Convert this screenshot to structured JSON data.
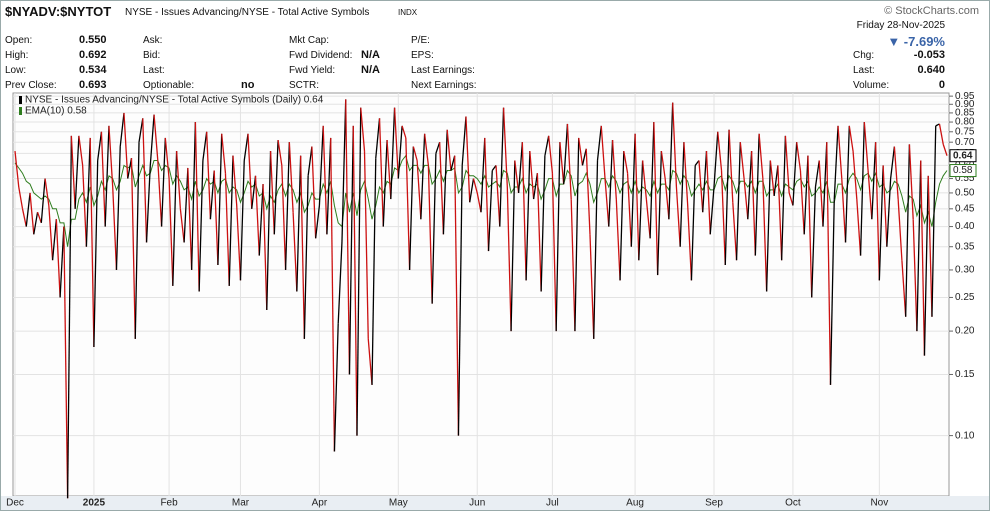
{
  "header": {
    "symbol": "$NYADV:$NYTOT",
    "description": "NYSE - Issues Advancing/NYSE - Total Active Symbols",
    "exchange": "INDX",
    "date": "Friday  28-Nov-2025",
    "change_pct": "-7.69%",
    "brand": "© StockCharts.com",
    "fields": [
      [
        "Open:",
        "0.550"
      ],
      [
        "High:",
        "0.692"
      ],
      [
        "Low:",
        "0.534"
      ],
      [
        "Prev Close:",
        "0.693"
      ],
      [
        "Ask:",
        ""
      ],
      [
        "Bid:",
        ""
      ],
      [
        "Last:",
        ""
      ],
      [
        "Optionable:",
        "no"
      ],
      [
        "Mkt Cap:",
        ""
      ],
      [
        "Fwd Dividend:",
        "N/A"
      ],
      [
        "Fwd Yield:",
        "N/A"
      ],
      [
        "SCTR:",
        ""
      ],
      [
        "P/E:",
        ""
      ],
      [
        "EPS:",
        ""
      ],
      [
        "Last Earnings:",
        ""
      ],
      [
        "Next Earnings:",
        ""
      ],
      [
        "Chg:",
        "-0.053"
      ],
      [
        "Last:",
        "0.640"
      ],
      [
        "Volume:",
        "0"
      ]
    ]
  },
  "chart_data": {
    "type": "line",
    "log_scale": true,
    "grid": true,
    "legend": "top-left",
    "down_color": "#cc1111",
    "ylim": [
      0.067,
      0.97
    ],
    "yticks": [
      {
        "value": 0.1,
        "label": "0.10"
      },
      0.15,
      {
        "value": 0.2,
        "label": "0.20"
      },
      0.25,
      {
        "value": 0.3,
        "label": "0.30"
      },
      0.35,
      {
        "value": 0.4,
        "label": "0.40"
      },
      0.45,
      {
        "value": 0.5,
        "label": "0.50"
      },
      0.55,
      {
        "value": 0.6,
        "label": "0.60"
      },
      0.65,
      {
        "value": 0.7,
        "label": "0.70"
      },
      0.75,
      {
        "value": 0.8,
        "label": "0.80"
      },
      0.85,
      {
        "value": 0.9,
        "label": "0.90"
      },
      0.95
    ],
    "categories": [
      "Dec",
      null,
      null,
      null,
      null,
      null,
      null,
      null,
      null,
      null,
      null,
      null,
      null,
      null,
      null,
      null,
      null,
      null,
      null,
      null,
      null,
      "2025",
      null,
      null,
      null,
      null,
      null,
      null,
      null,
      null,
      null,
      null,
      null,
      null,
      null,
      null,
      null,
      null,
      null,
      null,
      null,
      "Feb",
      null,
      null,
      null,
      null,
      null,
      null,
      null,
      null,
      null,
      null,
      null,
      null,
      null,
      null,
      null,
      null,
      null,
      null,
      "Mar",
      null,
      null,
      null,
      null,
      null,
      null,
      null,
      null,
      null,
      null,
      null,
      null,
      null,
      null,
      null,
      null,
      null,
      null,
      null,
      null,
      "Apr",
      null,
      null,
      null,
      null,
      null,
      null,
      null,
      null,
      null,
      null,
      null,
      null,
      null,
      null,
      null,
      null,
      null,
      null,
      null,
      null,
      "May",
      null,
      null,
      null,
      null,
      null,
      null,
      null,
      null,
      null,
      null,
      null,
      null,
      null,
      null,
      null,
      null,
      null,
      null,
      null,
      null,
      "Jun",
      null,
      null,
      null,
      null,
      null,
      null,
      null,
      null,
      null,
      null,
      null,
      null,
      null,
      null,
      null,
      null,
      null,
      null,
      null,
      "Jul",
      null,
      null,
      null,
      null,
      null,
      null,
      null,
      null,
      null,
      null,
      null,
      null,
      null,
      null,
      null,
      null,
      null,
      null,
      null,
      null,
      null,
      "Aug",
      null,
      null,
      null,
      null,
      null,
      null,
      null,
      null,
      null,
      null,
      null,
      null,
      null,
      null,
      null,
      null,
      null,
      null,
      null,
      null,
      "Sep",
      null,
      null,
      null,
      null,
      null,
      null,
      null,
      null,
      null,
      null,
      null,
      null,
      null,
      null,
      null,
      null,
      null,
      null,
      null,
      null,
      "Oct",
      null,
      null,
      null,
      null,
      null,
      null,
      null,
      null,
      null,
      null,
      null,
      null,
      null,
      null,
      null,
      null,
      null,
      null,
      null,
      null,
      null,
      null,
      "Nov",
      null,
      null,
      null,
      null,
      null,
      null,
      null,
      null,
      null,
      null,
      null,
      null,
      null,
      null,
      null,
      null,
      null,
      null
    ],
    "series": [
      {
        "name": "NYSE - Issues Advancing/NYSE - Total Active Symbols (Daily) 0.64",
        "color": "#000000",
        "values": [
          0.66,
          0.52,
          0.45,
          0.4,
          0.5,
          0.38,
          0.44,
          0.41,
          0.55,
          0.46,
          0.32,
          0.42,
          0.25,
          0.4,
          0.066,
          0.73,
          0.45,
          0.73,
          0.6,
          0.35,
          0.72,
          0.18,
          0.62,
          0.75,
          0.4,
          0.78,
          0.52,
          0.3,
          0.68,
          0.85,
          0.55,
          0.63,
          0.19,
          0.7,
          0.82,
          0.36,
          0.6,
          0.84,
          0.62,
          0.4,
          0.72,
          0.55,
          0.27,
          0.66,
          0.45,
          0.36,
          0.59,
          0.3,
          0.8,
          0.26,
          0.62,
          0.75,
          0.42,
          0.58,
          0.31,
          0.74,
          0.57,
          0.27,
          0.64,
          0.46,
          0.28,
          0.62,
          0.74,
          0.45,
          0.56,
          0.33,
          0.53,
          0.23,
          0.66,
          0.38,
          0.71,
          0.6,
          0.3,
          0.7,
          0.44,
          0.26,
          0.64,
          0.19,
          0.56,
          0.68,
          0.37,
          0.46,
          0.78,
          0.38,
          0.72,
          0.09,
          0.21,
          0.36,
          0.93,
          0.15,
          0.78,
          0.1,
          0.88,
          0.66,
          0.19,
          0.14,
          0.63,
          0.82,
          0.4,
          0.71,
          0.48,
          0.88,
          0.55,
          0.78,
          0.72,
          0.3,
          0.68,
          0.62,
          0.42,
          0.74,
          0.6,
          0.24,
          0.65,
          0.7,
          0.38,
          0.76,
          0.58,
          0.64,
          0.1,
          0.6,
          0.83,
          0.47,
          0.55,
          0.5,
          0.44,
          0.72,
          0.34,
          0.58,
          0.6,
          0.4,
          0.88,
          0.52,
          0.2,
          0.62,
          0.5,
          0.7,
          0.28,
          0.66,
          0.48,
          0.57,
          0.26,
          0.64,
          0.73,
          0.57,
          0.2,
          0.7,
          0.53,
          0.79,
          0.48,
          0.2,
          0.72,
          0.6,
          0.67,
          0.38,
          0.19,
          0.62,
          0.78,
          0.55,
          0.4,
          0.71,
          0.48,
          0.28,
          0.66,
          0.57,
          0.35,
          0.74,
          0.32,
          0.62,
          0.48,
          0.37,
          0.8,
          0.29,
          0.66,
          0.55,
          0.42,
          0.91,
          0.52,
          0.35,
          0.7,
          0.46,
          0.28,
          0.6,
          0.62,
          0.44,
          0.66,
          0.38,
          0.52,
          0.75,
          0.58,
          0.31,
          0.76,
          0.47,
          0.32,
          0.7,
          0.55,
          0.42,
          0.66,
          0.33,
          0.74,
          0.55,
          0.26,
          0.62,
          0.49,
          0.6,
          0.32,
          0.73,
          0.5,
          0.46,
          0.7,
          0.58,
          0.38,
          0.64,
          0.25,
          0.52,
          0.62,
          0.4,
          0.7,
          0.14,
          0.48,
          0.78,
          0.55,
          0.36,
          0.78,
          0.66,
          0.48,
          0.33,
          0.8,
          0.58,
          0.42,
          0.7,
          0.28,
          0.6,
          0.35,
          0.55,
          0.68,
          0.48,
          0.32,
          0.22,
          0.69,
          0.42,
          0.2,
          0.62,
          0.17,
          0.56,
          0.22,
          0.78,
          0.79,
          0.69,
          0.64
        ]
      },
      {
        "name": "EMA(10) 0.58",
        "color": "#2e7d1e",
        "values": [
          0.61,
          0.59,
          0.57,
          0.54,
          0.53,
          0.5,
          0.49,
          0.48,
          0.49,
          0.48,
          0.45,
          0.45,
          0.41,
          0.41,
          0.35,
          0.42,
          0.42,
          0.48,
          0.5,
          0.47,
          0.52,
          0.46,
          0.49,
          0.54,
          0.51,
          0.56,
          0.55,
          0.51,
          0.54,
          0.6,
          0.59,
          0.6,
          0.52,
          0.56,
          0.6,
          0.56,
          0.57,
          0.62,
          0.62,
          0.58,
          0.6,
          0.59,
          0.53,
          0.56,
          0.54,
          0.51,
          0.52,
          0.48,
          0.54,
          0.49,
          0.51,
          0.55,
          0.53,
          0.54,
          0.5,
          0.54,
          0.55,
          0.5,
          0.52,
          0.51,
          0.47,
          0.5,
          0.54,
          0.52,
          0.53,
          0.49,
          0.5,
          0.45,
          0.49,
          0.47,
          0.51,
          0.53,
          0.49,
          0.53,
          0.51,
          0.47,
          0.5,
          0.44,
          0.46,
          0.5,
          0.48,
          0.48,
          0.53,
          0.5,
          0.54,
          0.46,
          0.41,
          0.4,
          0.5,
          0.44,
          0.5,
          0.43,
          0.51,
          0.54,
          0.48,
          0.42,
          0.46,
          0.52,
          0.5,
          0.54,
          0.53,
          0.59,
          0.58,
          0.62,
          0.64,
          0.58,
          0.6,
          0.6,
          0.57,
          0.6,
          0.6,
          0.53,
          0.55,
          0.58,
          0.54,
          0.58,
          0.58,
          0.59,
          0.5,
          0.52,
          0.58,
          0.56,
          0.56,
          0.55,
          0.53,
          0.56,
          0.52,
          0.53,
          0.54,
          0.52,
          0.58,
          0.57,
          0.5,
          0.52,
          0.52,
          0.55,
          0.5,
          0.53,
          0.52,
          0.53,
          0.48,
          0.51,
          0.55,
          0.55,
          0.49,
          0.53,
          0.53,
          0.58,
          0.56,
          0.49,
          0.53,
          0.54,
          0.57,
          0.53,
          0.47,
          0.5,
          0.55,
          0.55,
          0.52,
          0.56,
          0.54,
          0.5,
          0.53,
          0.54,
          0.5,
          0.54,
          0.5,
          0.52,
          0.51,
          0.49,
          0.54,
          0.5,
          0.53,
          0.53,
          0.51,
          0.58,
          0.57,
          0.53,
          0.56,
          0.54,
          0.49,
          0.51,
          0.53,
          0.51,
          0.54,
          0.51,
          0.51,
          0.55,
          0.56,
          0.51,
          0.56,
          0.54,
          0.5,
          0.54,
          0.54,
          0.52,
          0.54,
          0.5,
          0.54,
          0.54,
          0.49,
          0.51,
          0.51,
          0.53,
          0.49,
          0.53,
          0.52,
          0.51,
          0.54,
          0.55,
          0.52,
          0.54,
          0.49,
          0.5,
          0.52,
          0.5,
          0.54,
          0.47,
          0.47,
          0.53,
          0.53,
          0.5,
          0.55,
          0.57,
          0.55,
          0.51,
          0.56,
          0.57,
          0.54,
          0.57,
          0.52,
          0.53,
          0.5,
          0.51,
          0.54,
          0.53,
          0.49,
          0.44,
          0.49,
          0.48,
          0.43,
          0.46,
          0.41,
          0.44,
          0.4,
          0.47,
          0.53,
          0.56,
          0.58
        ]
      }
    ]
  }
}
